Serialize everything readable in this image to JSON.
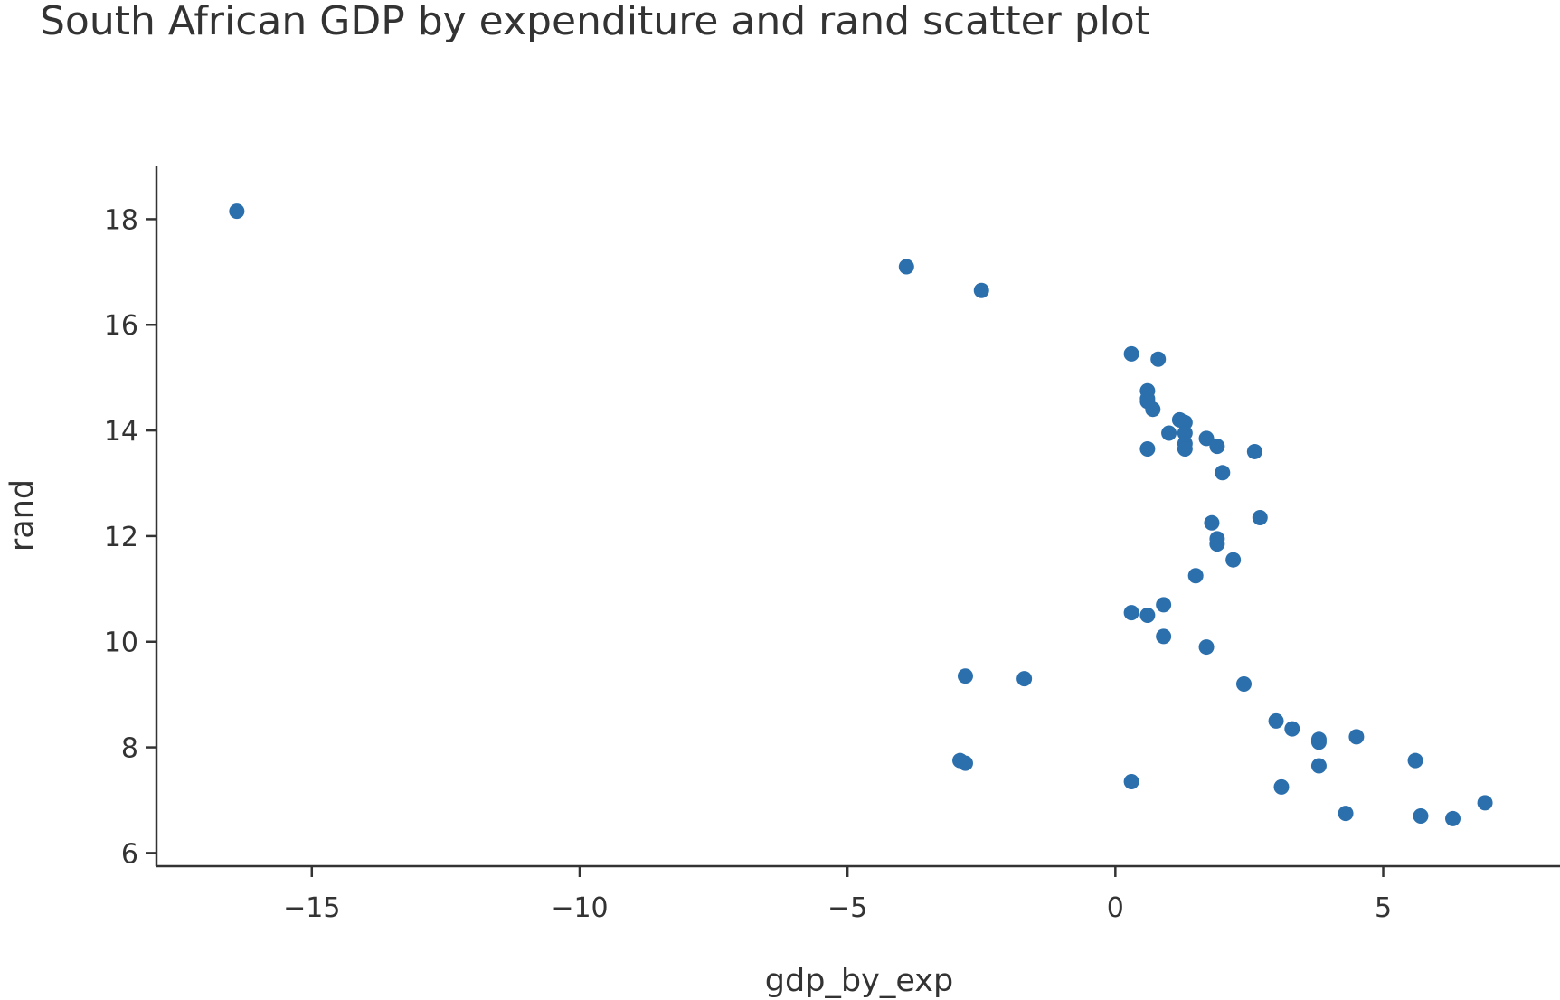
{
  "chart_data": {
    "type": "scatter",
    "title": "South African GDP by expenditure and rand scatter plot",
    "xlabel": "gdp_by_exp",
    "ylabel": "rand",
    "xlim": [
      -17.9,
      8.3
    ],
    "ylim": [
      5.75,
      19.0
    ],
    "x_ticks": [
      -15,
      -10,
      -5,
      0,
      5
    ],
    "x_tick_labels": [
      "−15",
      "−10",
      "−5",
      "0",
      "5"
    ],
    "y_ticks": [
      6,
      8,
      10,
      12,
      14,
      16,
      18
    ],
    "y_tick_labels": [
      "6",
      "8",
      "10",
      "12",
      "14",
      "16",
      "18"
    ],
    "grid": false,
    "marker_color": "#2b6fad",
    "series": [
      {
        "x": [
          -16.4,
          -3.9,
          -2.5,
          0.3,
          0.8,
          0.6,
          0.6,
          0.6,
          0.7,
          1.2,
          1.3,
          1.3,
          1.0,
          1.3,
          1.7,
          1.3,
          1.9,
          0.6,
          2.6,
          2.0,
          1.8,
          2.7,
          1.9,
          1.9,
          2.2,
          1.5,
          0.3,
          0.9,
          0.6,
          0.9,
          1.7,
          -2.8,
          -1.7,
          2.4,
          3.0,
          3.3,
          3.8,
          3.8,
          4.5,
          -2.9,
          -2.8,
          5.6,
          3.8,
          0.3,
          3.1,
          4.3,
          5.7,
          6.3,
          6.9
        ],
        "y": [
          18.15,
          17.1,
          16.65,
          15.45,
          15.35,
          14.75,
          14.55,
          14.6,
          14.4,
          14.2,
          14.15,
          13.95,
          13.95,
          13.75,
          13.85,
          13.65,
          13.7,
          13.65,
          13.6,
          13.2,
          12.25,
          12.35,
          11.95,
          11.85,
          11.55,
          11.25,
          10.55,
          10.7,
          10.5,
          10.1,
          9.9,
          9.35,
          9.3,
          9.2,
          8.5,
          8.35,
          8.15,
          8.1,
          8.2,
          7.75,
          7.7,
          7.75,
          7.65,
          7.35,
          7.25,
          6.75,
          6.7,
          6.65,
          6.95
        ]
      }
    ]
  }
}
